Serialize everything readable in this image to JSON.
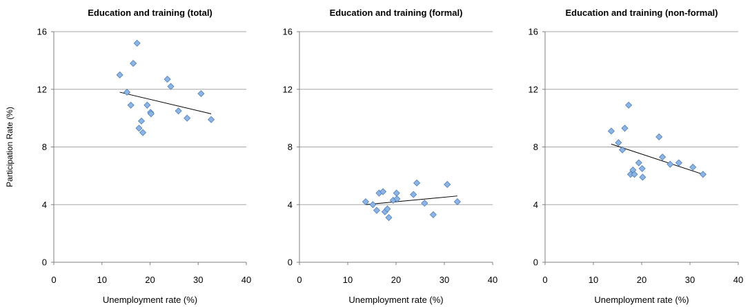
{
  "chart_data": [
    {
      "type": "scatter",
      "title": "Education and training (total)",
      "xlabel": "Unemployment  rate (%)",
      "ylabel": "Participation Rate (%)",
      "xlim": [
        0,
        40
      ],
      "ylim": [
        0,
        16
      ],
      "xticks": [
        "0",
        "10",
        "20",
        "30",
        "40"
      ],
      "yticks": [
        "0",
        "4",
        "8",
        "12",
        "16"
      ],
      "grid": "horizontal",
      "marker_color": "#8DB4E2",
      "points": [
        {
          "x": 13.7,
          "y": 13.0
        },
        {
          "x": 15.2,
          "y": 11.8
        },
        {
          "x": 16.0,
          "y": 10.9
        },
        {
          "x": 16.5,
          "y": 13.8
        },
        {
          "x": 17.3,
          "y": 15.2
        },
        {
          "x": 17.7,
          "y": 9.3
        },
        {
          "x": 18.2,
          "y": 9.8
        },
        {
          "x": 18.5,
          "y": 9.0
        },
        {
          "x": 19.4,
          "y": 10.9
        },
        {
          "x": 20.1,
          "y": 10.4
        },
        {
          "x": 20.2,
          "y": 10.3
        },
        {
          "x": 23.6,
          "y": 12.7
        },
        {
          "x": 24.3,
          "y": 12.2
        },
        {
          "x": 25.9,
          "y": 10.5
        },
        {
          "x": 27.7,
          "y": 10.0
        },
        {
          "x": 30.6,
          "y": 11.7
        },
        {
          "x": 32.7,
          "y": 9.9
        }
      ],
      "trendline": [
        {
          "x": 13.7,
          "y": 11.8
        },
        {
          "x": 32.7,
          "y": 10.3
        }
      ]
    },
    {
      "type": "scatter",
      "title": "Education and training (formal)",
      "xlabel": "Unemployment rate (%)",
      "ylabel": "",
      "xlim": [
        0,
        40
      ],
      "ylim": [
        0,
        16
      ],
      "xticks": [
        "0",
        "10",
        "20",
        "30",
        "40"
      ],
      "yticks": [
        "0",
        "4",
        "8",
        "12",
        "16"
      ],
      "grid": "horizontal",
      "marker_color": "#8DB4E2",
      "points": [
        {
          "x": 13.7,
          "y": 4.2
        },
        {
          "x": 15.2,
          "y": 4.0
        },
        {
          "x": 16.0,
          "y": 3.6
        },
        {
          "x": 16.5,
          "y": 4.8
        },
        {
          "x": 17.3,
          "y": 4.9
        },
        {
          "x": 17.7,
          "y": 3.5
        },
        {
          "x": 18.2,
          "y": 3.7
        },
        {
          "x": 18.5,
          "y": 3.1
        },
        {
          "x": 19.4,
          "y": 4.3
        },
        {
          "x": 20.1,
          "y": 4.8
        },
        {
          "x": 20.2,
          "y": 4.4
        },
        {
          "x": 23.6,
          "y": 4.7
        },
        {
          "x": 24.3,
          "y": 5.5
        },
        {
          "x": 25.9,
          "y": 4.1
        },
        {
          "x": 27.7,
          "y": 3.3
        },
        {
          "x": 30.6,
          "y": 5.4
        },
        {
          "x": 32.7,
          "y": 4.2
        }
      ],
      "trendline": [
        {
          "x": 13.7,
          "y": 4.0
        },
        {
          "x": 32.7,
          "y": 4.6
        }
      ]
    },
    {
      "type": "scatter",
      "title": "Education and training (non-formal)",
      "xlabel": "Unemployment rate (%)",
      "ylabel": "",
      "xlim": [
        0,
        40
      ],
      "ylim": [
        0,
        16
      ],
      "xticks": [
        "0",
        "10",
        "20",
        "30",
        "40"
      ],
      "yticks": [
        "0",
        "4",
        "8",
        "12",
        "16"
      ],
      "grid": "horizontal",
      "marker_color": "#8DB4E2",
      "points": [
        {
          "x": 13.7,
          "y": 9.1
        },
        {
          "x": 15.2,
          "y": 8.3
        },
        {
          "x": 16.0,
          "y": 7.8
        },
        {
          "x": 16.5,
          "y": 9.3
        },
        {
          "x": 17.3,
          "y": 10.9
        },
        {
          "x": 17.7,
          "y": 6.1
        },
        {
          "x": 18.2,
          "y": 6.4
        },
        {
          "x": 18.5,
          "y": 6.1
        },
        {
          "x": 19.4,
          "y": 6.9
        },
        {
          "x": 20.1,
          "y": 6.5
        },
        {
          "x": 20.2,
          "y": 5.9
        },
        {
          "x": 23.6,
          "y": 8.7
        },
        {
          "x": 24.3,
          "y": 7.3
        },
        {
          "x": 25.9,
          "y": 6.8
        },
        {
          "x": 27.7,
          "y": 6.9
        },
        {
          "x": 30.6,
          "y": 6.6
        },
        {
          "x": 32.7,
          "y": 6.1
        }
      ],
      "trendline": [
        {
          "x": 13.7,
          "y": 8.2
        },
        {
          "x": 32.7,
          "y": 6.1
        }
      ]
    }
  ]
}
